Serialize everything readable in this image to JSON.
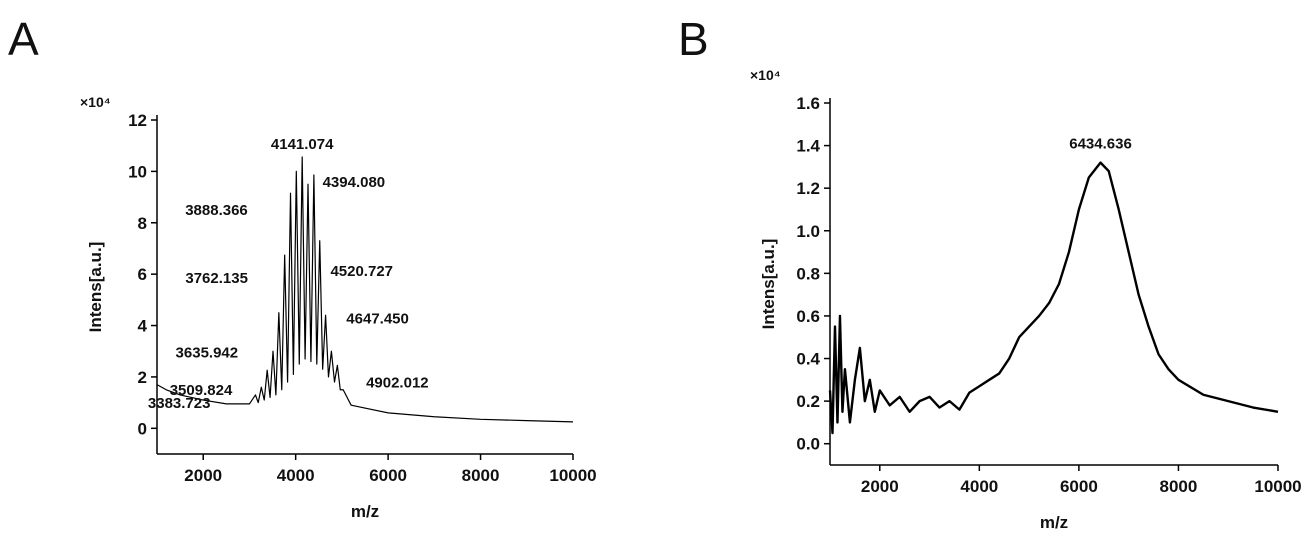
{
  "chart_data": [
    {
      "type": "line",
      "panel": "A",
      "multiplier": "×10⁴",
      "x_label": "m/z",
      "y_label": "Intens[a.u.]",
      "xlim": [
        1000,
        10000
      ],
      "xticks": [
        2000,
        4000,
        6000,
        8000,
        10000
      ],
      "ylim": [
        -1,
        12
      ],
      "yticks": [
        0,
        2,
        4,
        6,
        8,
        10,
        12
      ],
      "series": [
        {
          "color": "#000000",
          "x": [
            1000,
            1200,
            1500,
            2000,
            2500,
            3000,
            3130,
            3190,
            3257,
            3320,
            3383.723,
            3446,
            3509.824,
            3572,
            3635.942,
            3699,
            3762.135,
            3825,
            3888.366,
            3951,
            4014,
            4078,
            4141.074,
            4204,
            4267,
            4330,
            4394.08,
            4457,
            4520.727,
            4584,
            4647.45,
            4710,
            4773,
            4840,
            4902.012,
            4965,
            5028,
            5200,
            6000,
            7000,
            8000,
            9000,
            10000
          ],
          "values": [
            1.7,
            1.5,
            1.3,
            1.1,
            0.95,
            0.95,
            1.3,
            1.0,
            1.6,
            1.1,
            2.26,
            1.2,
            3.0,
            1.3,
            4.5,
            1.5,
            6.74,
            1.8,
            9.15,
            2.1,
            10.0,
            2.5,
            10.56,
            2.7,
            9.5,
            2.6,
            9.86,
            2.5,
            7.3,
            2.3,
            4.4,
            2.0,
            3.0,
            1.8,
            2.45,
            1.5,
            1.5,
            0.9,
            0.6,
            0.45,
            0.35,
            0.3,
            0.25
          ]
        }
      ],
      "annotations": [
        {
          "label": "4141.074",
          "x": 4141.074
        },
        {
          "label": "3888.366",
          "x": 3888.366
        },
        {
          "label": "4394.080",
          "x": 4394.08
        },
        {
          "label": "3762.135",
          "x": 3762.135
        },
        {
          "label": "4520.727",
          "x": 4520.727
        },
        {
          "label": "3635.942",
          "x": 3635.942
        },
        {
          "label": "4647.450",
          "x": 4647.45
        },
        {
          "label": "3509.824",
          "x": 3509.824
        },
        {
          "label": "3383.723",
          "x": 3383.723
        },
        {
          "label": "4902.012",
          "x": 4902.012
        }
      ]
    },
    {
      "type": "line",
      "panel": "B",
      "multiplier": "×10⁴",
      "x_label": "m/z",
      "y_label": "Intens[a.u.]",
      "xlim": [
        1000,
        10000
      ],
      "xticks": [
        2000,
        4000,
        6000,
        8000,
        10000
      ],
      "ylim": [
        -0.1,
        1.6
      ],
      "yticks": [
        {
          "value": 0,
          "label": "0.0"
        },
        0.2,
        0.4,
        0.6,
        0.8,
        {
          "value": 1,
          "label": "1.0"
        },
        1.2,
        1.4,
        1.6
      ],
      "series": [
        {
          "color": "#000000",
          "x": [
            1000,
            1050,
            1100,
            1150,
            1200,
            1250,
            1300,
            1400,
            1500,
            1600,
            1700,
            1800,
            1900,
            2000,
            2200,
            2400,
            2600,
            2800,
            3000,
            3200,
            3400,
            3600,
            3800,
            4000,
            4200,
            4400,
            4600,
            4800,
            5000,
            5200,
            5400,
            5600,
            5800,
            6000,
            6200,
            6434.636,
            6600,
            6800,
            7000,
            7200,
            7400,
            7600,
            7800,
            8000,
            8500,
            9000,
            9500,
            10000
          ],
          "values": [
            0.25,
            0.05,
            0.55,
            0.1,
            0.6,
            0.15,
            0.35,
            0.1,
            0.3,
            0.45,
            0.2,
            0.3,
            0.15,
            0.25,
            0.18,
            0.22,
            0.15,
            0.2,
            0.22,
            0.17,
            0.2,
            0.16,
            0.24,
            0.27,
            0.3,
            0.33,
            0.4,
            0.5,
            0.55,
            0.6,
            0.66,
            0.75,
            0.9,
            1.1,
            1.25,
            1.32,
            1.28,
            1.1,
            0.9,
            0.7,
            0.55,
            0.42,
            0.35,
            0.3,
            0.23,
            0.2,
            0.17,
            0.15
          ]
        }
      ],
      "annotations": [
        {
          "label": "6434.636",
          "x": 6434.636
        }
      ]
    }
  ]
}
